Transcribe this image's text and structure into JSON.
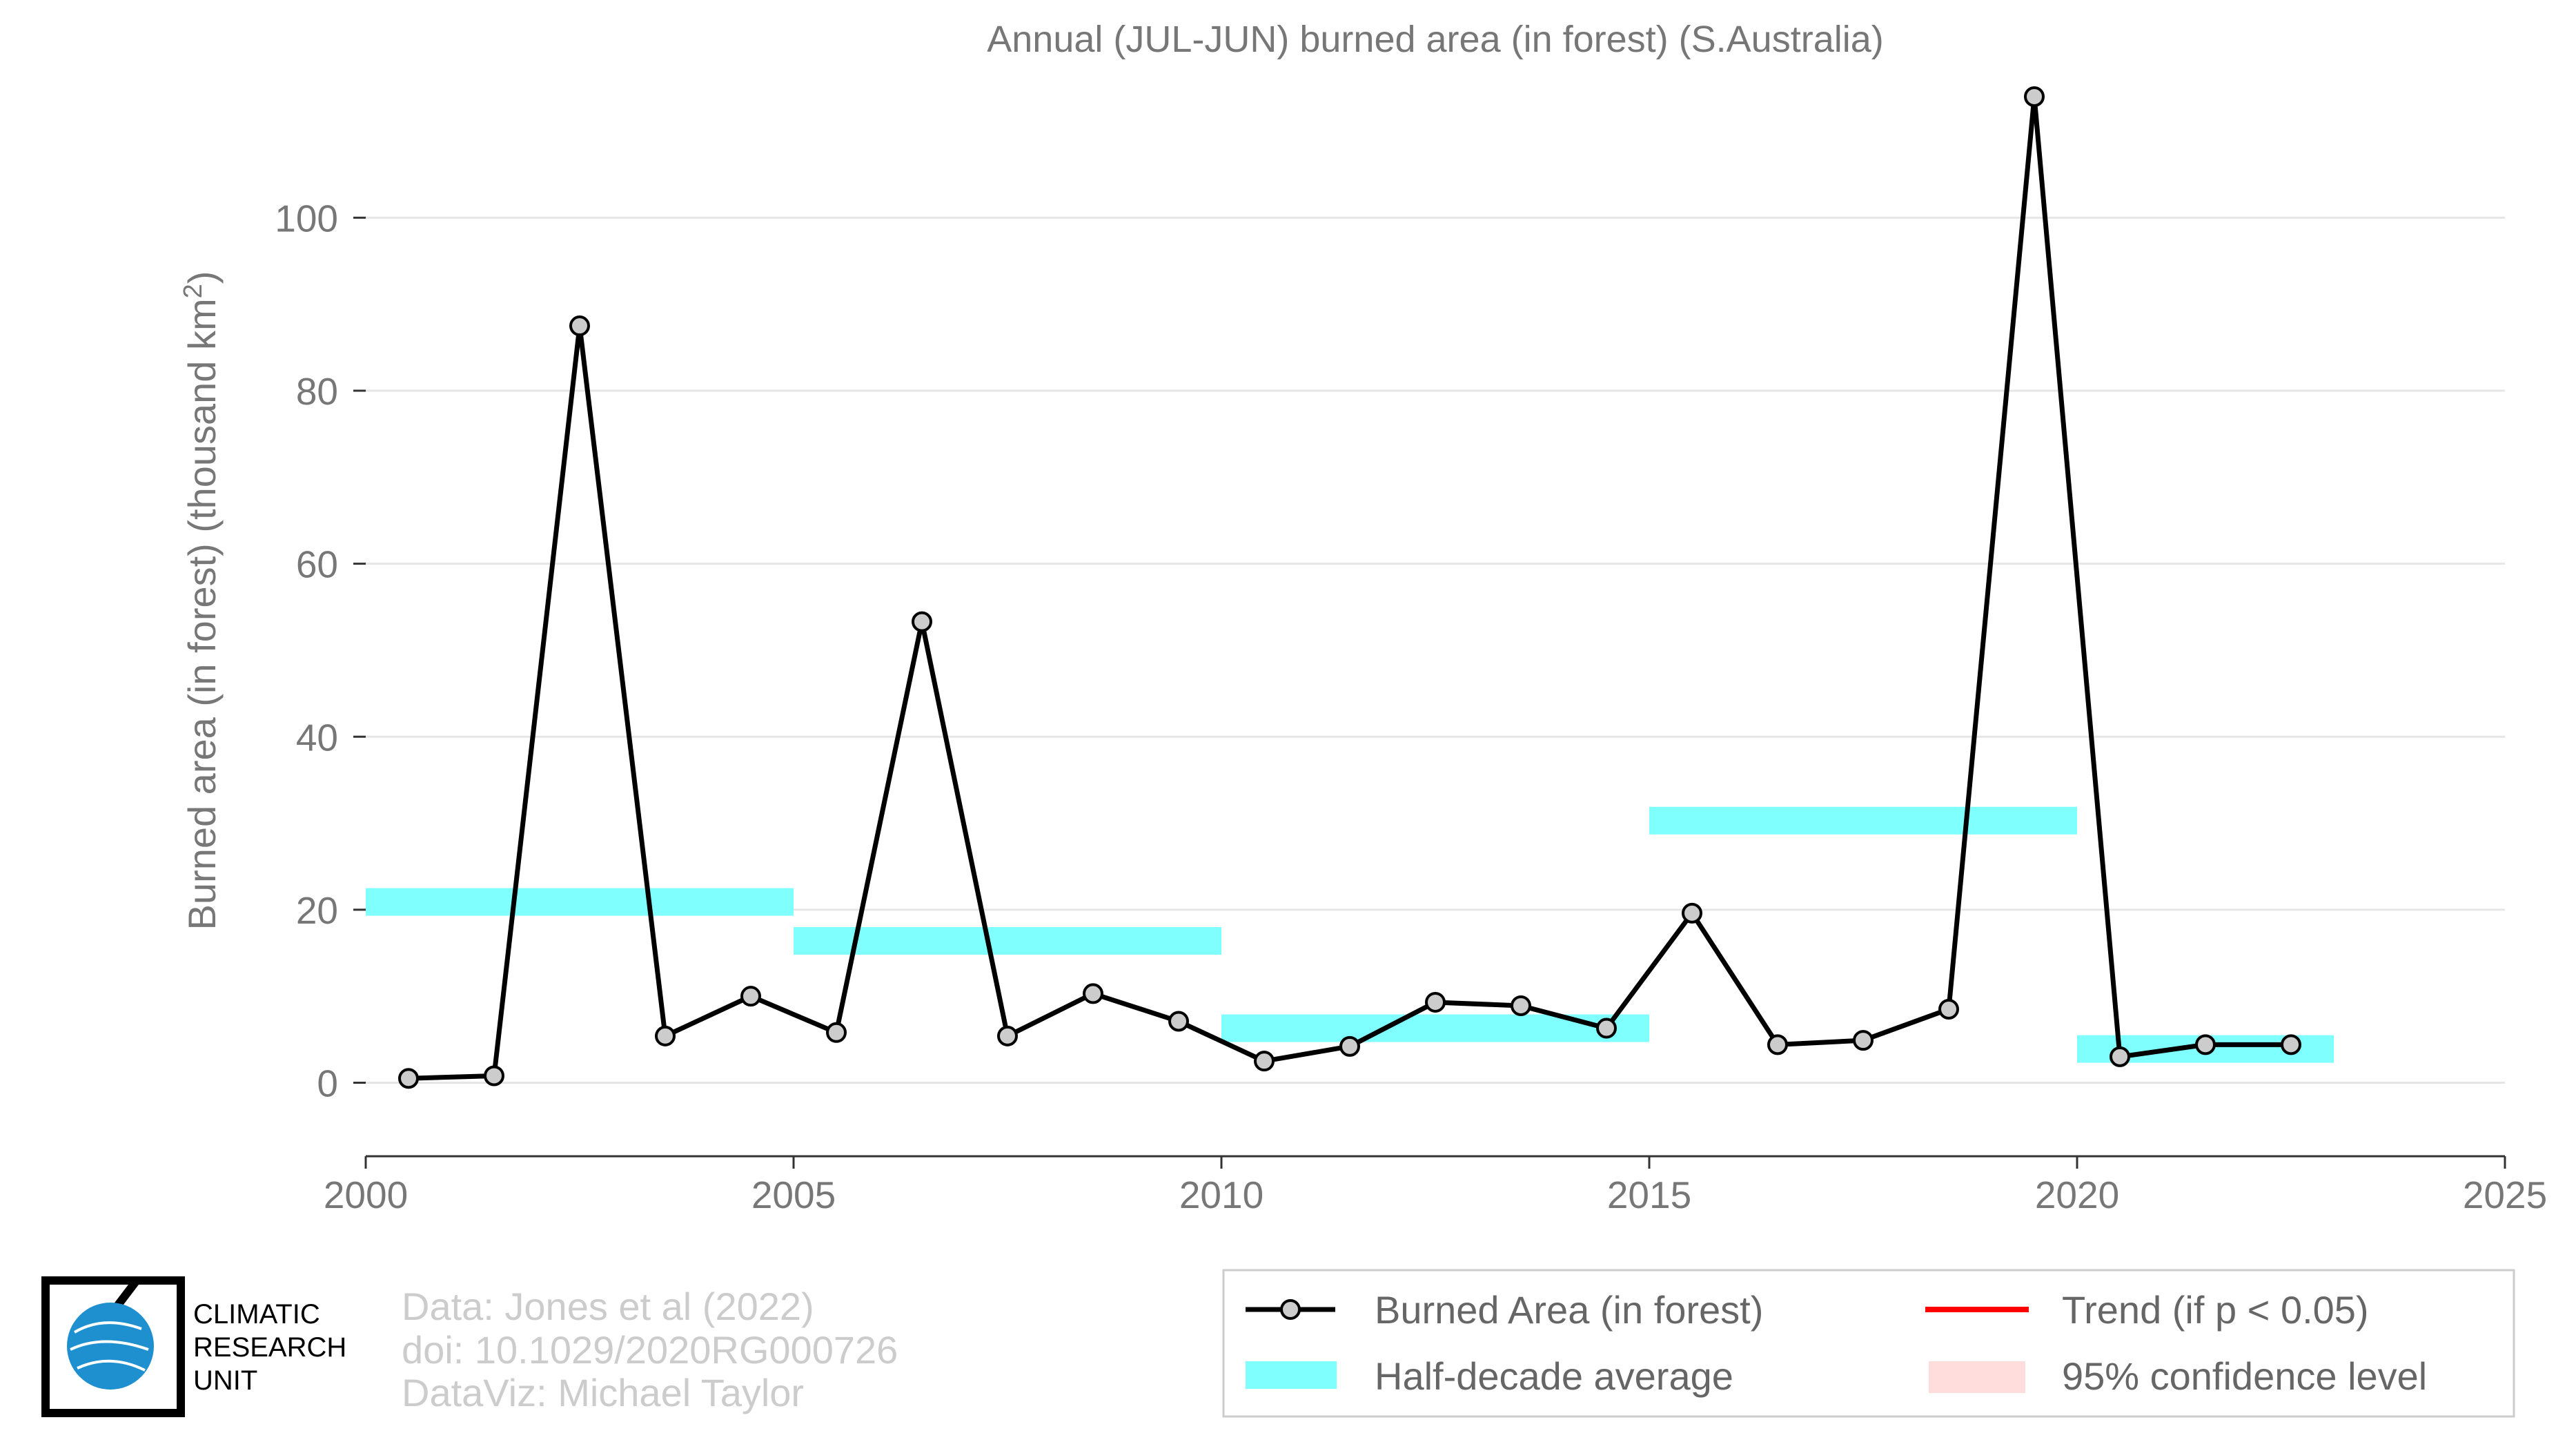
{
  "chart_data": {
    "type": "line",
    "title": "Annual (JUL-JUN) burned area (in forest) (S.Australia)",
    "ylabel": "Burned area (in forest) (thousand km",
    "ylabel_sup": "2",
    "ylabel_close": ")",
    "xlim": [
      2000,
      2025
    ],
    "ylim": [
      -8.5,
      114
    ],
    "x_ticks": [
      2000,
      2005,
      2010,
      2015,
      2020,
      2025
    ],
    "y_ticks": [
      0,
      20,
      40,
      60,
      80,
      100
    ],
    "grid": true,
    "series": [
      {
        "name": "Burned Area (in forest)",
        "color": "#000000",
        "marker_fill": "#cccccc",
        "x": [
          2000.5,
          2001.5,
          2002.5,
          2003.5,
          2004.5,
          2005.5,
          2006.5,
          2007.5,
          2008.5,
          2009.5,
          2010.5,
          2011.5,
          2012.5,
          2013.5,
          2014.5,
          2015.5,
          2016.5,
          2017.5,
          2018.5,
          2019.5,
          2020.5,
          2021.5,
          2022.5
        ],
        "y": [
          0.5,
          0.8,
          87.5,
          5.4,
          10.0,
          5.8,
          53.3,
          5.4,
          10.3,
          7.1,
          2.5,
          4.2,
          9.3,
          8.9,
          6.3,
          19.6,
          4.4,
          4.9,
          8.5,
          114.0,
          3.0,
          4.4,
          4.4
        ]
      }
    ],
    "half_decade_average": {
      "name": "Half-decade average",
      "color": "#80ffff",
      "segments": [
        {
          "x_start": 2000,
          "x_end": 2005,
          "value": 20.9
        },
        {
          "x_start": 2005,
          "x_end": 2010,
          "value": 16.4
        },
        {
          "x_start": 2010,
          "x_end": 2015,
          "value": 6.3
        },
        {
          "x_start": 2015,
          "x_end": 2020,
          "value": 30.3
        },
        {
          "x_start": 2020,
          "x_end": 2023,
          "value": 3.9
        }
      ]
    },
    "legend": {
      "placement": "bottom-right",
      "items": [
        {
          "label": "Burned Area (in forest)",
          "type": "line-marker",
          "color": "#000000"
        },
        {
          "label": "Trend (if p < 0.05)",
          "type": "line",
          "color": "#ff0000"
        },
        {
          "label": "Half-decade average",
          "type": "band",
          "color": "#80ffff"
        },
        {
          "label": "95% confidence level",
          "type": "band",
          "color": "#ffdddd"
        }
      ]
    }
  },
  "credits": {
    "line1": "Data: Jones et al (2022)",
    "line2": "doi: 10.1029/2020RG000726",
    "line3": "DataViz: Michael Taylor"
  },
  "logo": {
    "line1": "CLIMATIC",
    "line2": "RESEARCH",
    "line3": "UNIT",
    "globe_color": "#1e90d0"
  }
}
